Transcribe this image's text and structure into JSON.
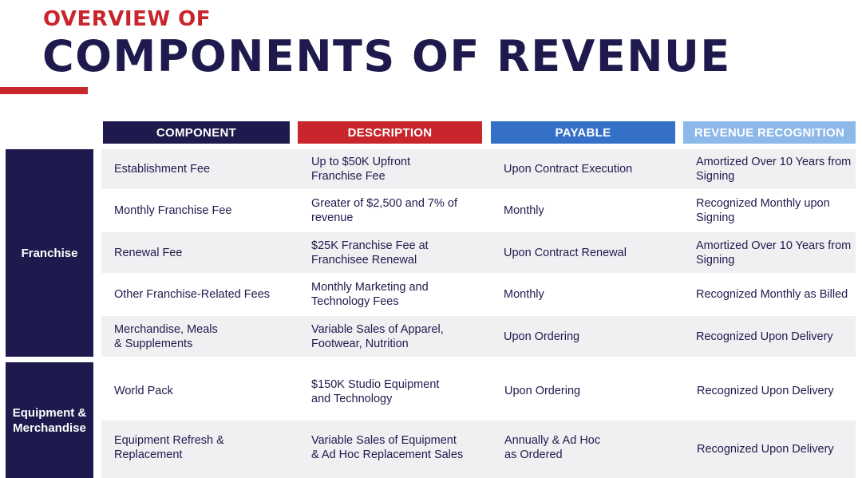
{
  "header": {
    "overline": "OVERVIEW OF",
    "title": "COMPONENTS OF REVENUE"
  },
  "columns": {
    "component": "COMPONENT",
    "description": "DESCRIPTION",
    "payable": "PAYABLE",
    "recognition": "REVENUE RECOGNITION"
  },
  "groups": {
    "franchise": "Franchise",
    "equipment": "Equipment &\nMerchandise"
  },
  "rows": [
    {
      "component": "Establishment Fee",
      "description": "Up to $50K Upfront\nFranchise Fee",
      "payable": "Upon Contract Execution",
      "recognition": "Amortized Over 10 Years from\nSigning"
    },
    {
      "component": "Monthly Franchise Fee",
      "description": "Greater of $2,500 and 7% of\nrevenue",
      "payable": "Monthly",
      "recognition": "Recognized Monthly upon\nSigning"
    },
    {
      "component": "Renewal Fee",
      "description": "$25K Franchise Fee at\nFranchisee Renewal",
      "payable": "Upon Contract Renewal",
      "recognition": "Amortized Over 10 Years from\nSigning"
    },
    {
      "component": "Other Franchise-Related Fees",
      "description": "Monthly Marketing and\nTechnology Fees",
      "payable": "Monthly",
      "recognition": "Recognized Monthly as Billed"
    },
    {
      "component": "Merchandise, Meals\n& Supplements",
      "description": "Variable Sales of Apparel,\nFootwear, Nutrition",
      "payable": "Upon Ordering",
      "recognition": "Recognized Upon Delivery"
    },
    {
      "component": "World Pack",
      "description": "$150K Studio Equipment\nand Technology",
      "payable": "Upon Ordering",
      "recognition": "Recognized Upon Delivery"
    },
    {
      "component": "Equipment Refresh &\nReplacement",
      "description": "Variable Sales of Equipment\n& Ad Hoc Replacement Sales",
      "payable": "Annually & Ad Hoc\nas Ordered",
      "recognition": "Recognized Upon Delivery"
    }
  ]
}
